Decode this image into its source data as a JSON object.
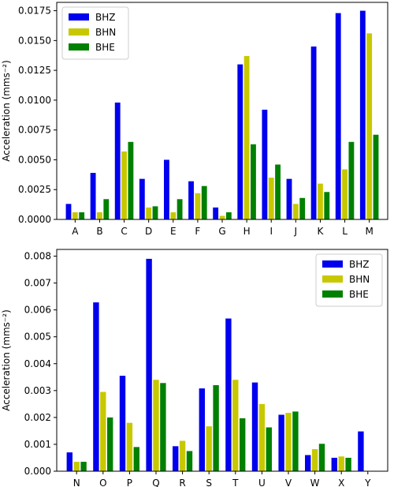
{
  "colors": {
    "BHZ": "#0000ee",
    "BHN": "#c8c800",
    "BHE": "#008000"
  },
  "chart_data": [
    {
      "type": "bar",
      "ylabel": "Acceleration (mms⁻²)",
      "xlabel": "",
      "ylim": [
        0,
        0.0182
      ],
      "yticks": [
        0.0,
        0.0025,
        0.005,
        0.0075,
        0.01,
        0.0125,
        0.015,
        0.0175
      ],
      "ytick_labels": [
        "0.0000",
        "0.0025",
        "0.0050",
        "0.0075",
        "0.0100",
        "0.0125",
        "0.0150",
        "0.0175"
      ],
      "legend_position": "top-left",
      "grid": false,
      "categories": [
        "A",
        "B",
        "C",
        "D",
        "E",
        "F",
        "G",
        "H",
        "I",
        "J",
        "K",
        "L",
        "M"
      ],
      "series": [
        {
          "name": "BHZ",
          "values": [
            0.0013,
            0.0039,
            0.0098,
            0.0034,
            0.005,
            0.0032,
            0.001,
            0.013,
            0.0092,
            0.0034,
            0.0145,
            0.0173,
            0.0175
          ]
        },
        {
          "name": "BHN",
          "values": [
            0.0006,
            0.0006,
            0.0057,
            0.001,
            0.0006,
            0.0022,
            0.0003,
            0.0137,
            0.0035,
            0.0013,
            0.003,
            0.0042,
            0.0156
          ]
        },
        {
          "name": "BHE",
          "values": [
            0.0006,
            0.0017,
            0.0065,
            0.0011,
            0.0017,
            0.0028,
            0.0006,
            0.0063,
            0.0046,
            0.0018,
            0.0023,
            0.0065,
            0.0071
          ]
        }
      ]
    },
    {
      "type": "bar",
      "ylabel": "Acceleration (mms⁻²)",
      "xlabel": "",
      "ylim": [
        0,
        0.00825
      ],
      "yticks": [
        0.0,
        0.001,
        0.002,
        0.003,
        0.004,
        0.005,
        0.006,
        0.007,
        0.008
      ],
      "ytick_labels": [
        "0.000",
        "0.001",
        "0.002",
        "0.003",
        "0.004",
        "0.005",
        "0.006",
        "0.007",
        "0.008"
      ],
      "legend_position": "top-right",
      "grid": false,
      "categories": [
        "N",
        "O",
        "P",
        "Q",
        "R",
        "S",
        "T",
        "U",
        "V",
        "W",
        "X",
        "Y"
      ],
      "series": [
        {
          "name": "BHZ",
          "values": [
            0.0007,
            0.00628,
            0.00355,
            0.0079,
            0.00093,
            0.00308,
            0.00568,
            0.0033,
            0.0021,
            0.0006,
            0.0005,
            0.00148
          ]
        },
        {
          "name": "BHN",
          "values": [
            0.00035,
            0.00295,
            0.0018,
            0.0034,
            0.00113,
            0.00167,
            0.0034,
            0.0025,
            0.00217,
            0.00082,
            0.00055,
            0.0
          ]
        },
        {
          "name": "BHE",
          "values": [
            0.00035,
            0.002,
            0.0009,
            0.00328,
            0.00075,
            0.0032,
            0.00197,
            0.00163,
            0.00222,
            0.00102,
            0.0005,
            0.0
          ]
        }
      ]
    }
  ]
}
